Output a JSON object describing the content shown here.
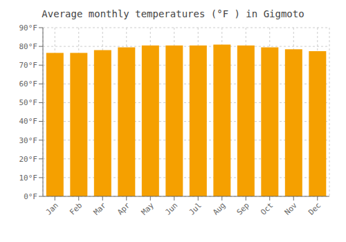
{
  "chart_data": {
    "type": "bar",
    "title": "Average monthly temperatures (°F ) in Gigmoto",
    "categories": [
      "Jan",
      "Feb",
      "Mar",
      "Apr",
      "May",
      "Jun",
      "Jul",
      "Aug",
      "Sep",
      "Oct",
      "Nov",
      "Dec"
    ],
    "values": [
      76.5,
      76.5,
      78.0,
      79.5,
      80.5,
      80.5,
      80.5,
      81.0,
      80.5,
      79.5,
      78.5,
      77.5
    ],
    "color": "#F5A000",
    "ylim": [
      0,
      90
    ],
    "yticks": [
      {
        "value": 0,
        "label": "0°F"
      },
      {
        "value": 10,
        "label": "10°F"
      },
      {
        "value": 20,
        "label": "20°F"
      },
      {
        "value": 30,
        "label": "30°F"
      },
      {
        "value": 40,
        "label": "40°F"
      },
      {
        "value": 50,
        "label": "50°F"
      },
      {
        "value": 60,
        "label": "60°F"
      },
      {
        "value": 70,
        "label": "70°F"
      },
      {
        "value": 80,
        "label": "80°F"
      },
      {
        "value": 90,
        "label": "90°F"
      }
    ],
    "grid": true
  }
}
